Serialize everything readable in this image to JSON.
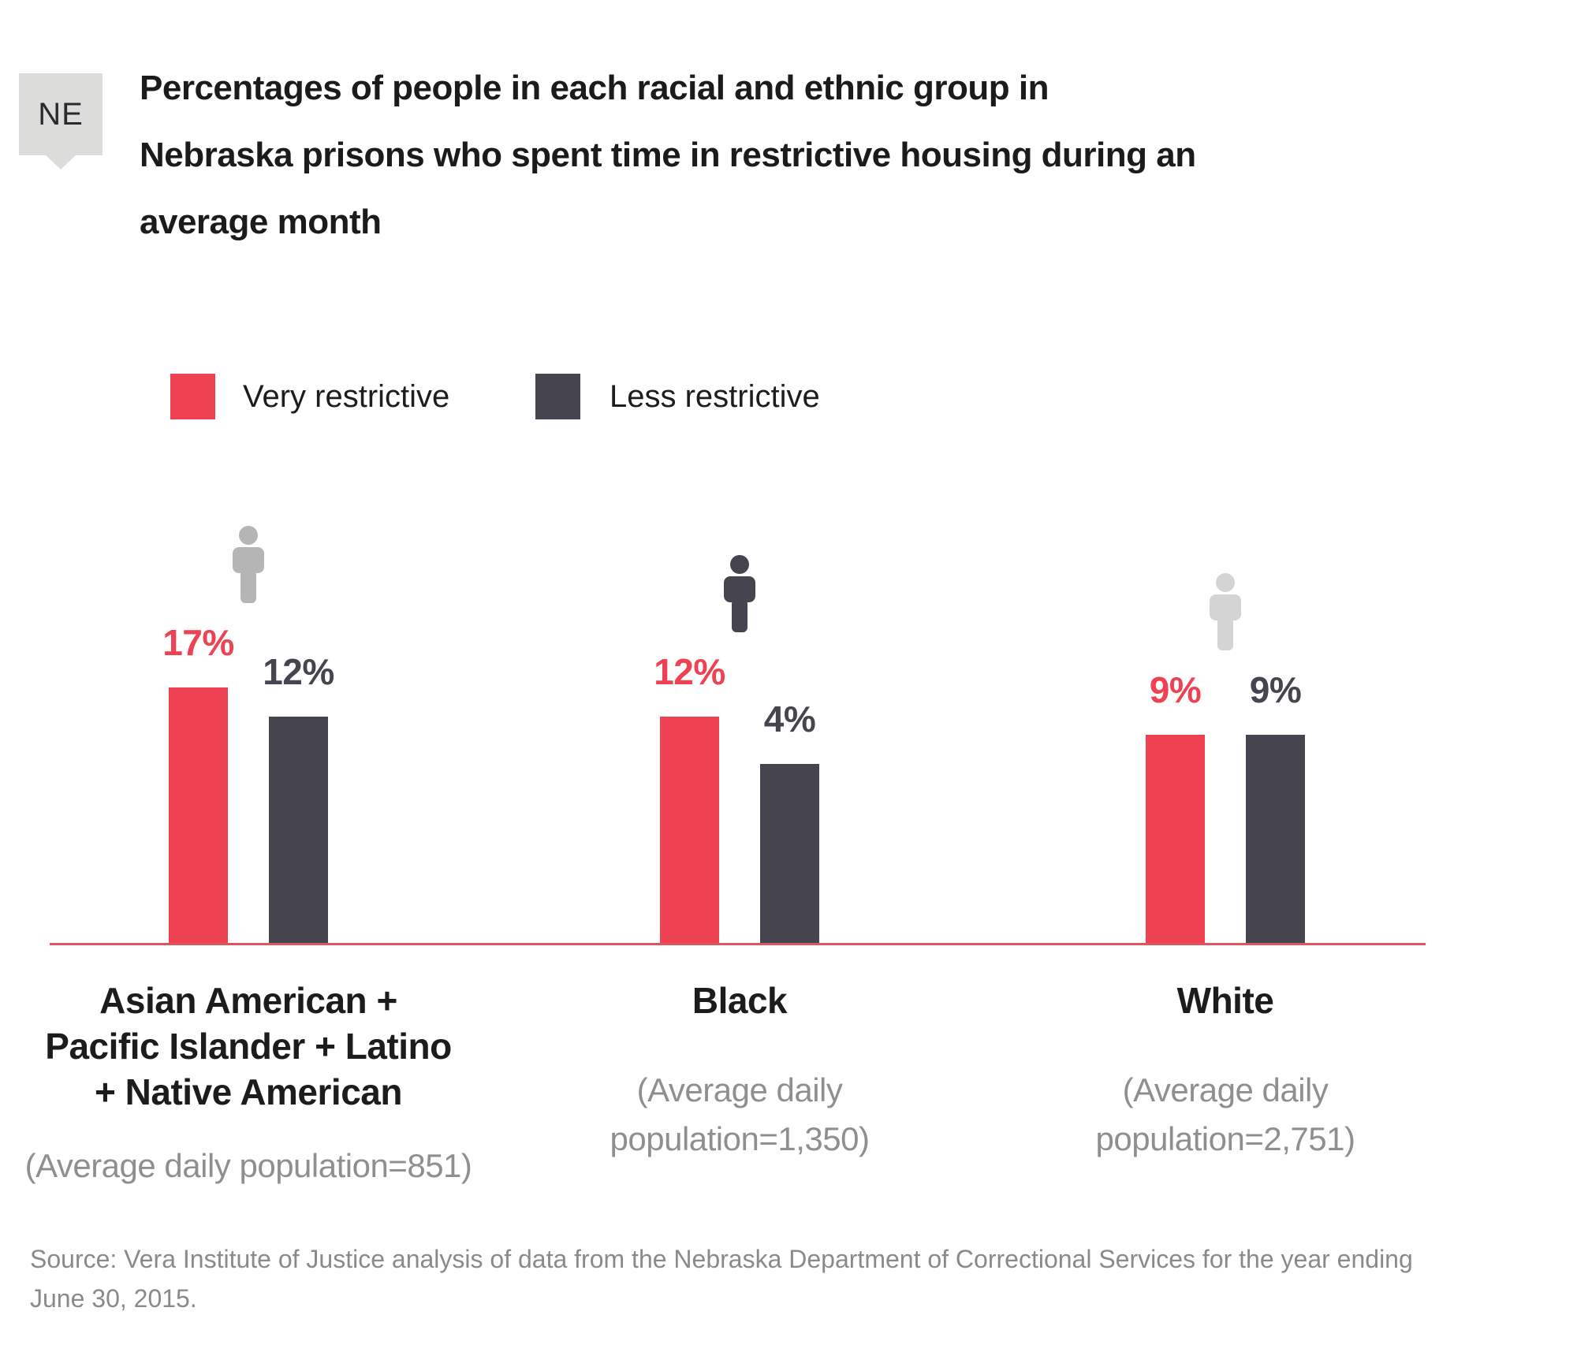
{
  "badge": {
    "label": "NE"
  },
  "title": {
    "line1": "Percentages of people in each racial and ethnic group in",
    "line2": "Nebraska prisons who spent time in restrictive housing during an",
    "line3": "average month"
  },
  "legend": {
    "items": [
      {
        "label": "Very restrictive",
        "color": "#ee4151"
      },
      {
        "label": "Less restrictive",
        "color": "#46454f"
      }
    ]
  },
  "colors": {
    "very_restrictive": "#ee4151",
    "less_restrictive": "#46454f",
    "axis_line": "#e2525f",
    "badge_bg": "#dcdcda",
    "sublabel_gray": "#8f8f8f"
  },
  "chart_data": {
    "type": "bar",
    "title": "Percentages of people in each racial and ethnic group in Nebraska prisons who spent time in restrictive housing during an average month",
    "categories": [
      "Asian American + Pacific Islander + Latino + Native American",
      "Black",
      "White"
    ],
    "category_sublabels": [
      "(Average daily population=851)",
      "(Average daily population=1,350)",
      "(Average daily population=2,751)"
    ],
    "series": [
      {
        "name": "Very restrictive",
        "color": "#ee4151",
        "values": [
          17,
          12,
          9
        ]
      },
      {
        "name": "Less restrictive",
        "color": "#46454f",
        "values": [
          12,
          4,
          9
        ]
      }
    ],
    "value_labels": [
      [
        "17%",
        "12%"
      ],
      [
        "12%",
        "4%"
      ],
      [
        "9%",
        "9%"
      ]
    ],
    "xlabel": "",
    "ylabel": "",
    "ylim": [
      0,
      20
    ],
    "grid": false,
    "legend_position": "top-left"
  },
  "groups": [
    {
      "very_value": 17,
      "less_value": 12,
      "very_label": "17%",
      "less_label": "12%",
      "icon_color": "#b5b5b5",
      "label_lines": [
        "Asian American +",
        "Pacific Islander + Latino",
        "+ Native American"
      ],
      "sublabel_lines": [
        "(Average daily population=851)"
      ]
    },
    {
      "very_value": 12,
      "less_value": 4,
      "very_label": "12%",
      "less_label": "4%",
      "icon_color": "#46454f",
      "label_lines": [
        "Black"
      ],
      "sublabel_lines": [
        "(Average daily",
        "population=1,350)"
      ]
    },
    {
      "very_value": 9,
      "less_value": 9,
      "very_label": "9%",
      "less_label": "9%",
      "icon_color": "#d4d4d4",
      "label_lines": [
        "White"
      ],
      "sublabel_lines": [
        "(Average daily",
        "population=2,751)"
      ]
    }
  ],
  "source": {
    "line1": "Source: Vera Institute of Justice analysis of data from the Nebraska Department of Correctional Services for the year ending",
    "line2": "June 30, 2015."
  }
}
